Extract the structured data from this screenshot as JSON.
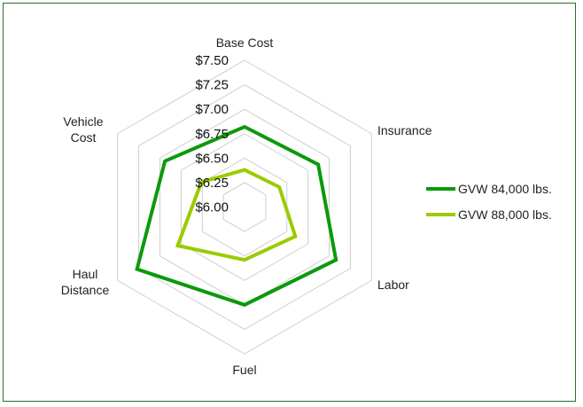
{
  "chart_data": {
    "type": "radar",
    "categories": [
      "Base Cost",
      "Insurance",
      "Labor",
      "Fuel",
      "Haul Distance",
      "Vehicle Cost"
    ],
    "category_lines": [
      [
        "Base Cost"
      ],
      [
        "Insurance"
      ],
      [
        "Labor"
      ],
      [
        "Fuel"
      ],
      [
        "Haul",
        "Distance"
      ],
      [
        "Vehicle",
        "Cost"
      ]
    ],
    "rlim": [
      6.0,
      7.5
    ],
    "ticks": [
      "$6.00",
      "$6.25",
      "$6.50",
      "$6.75",
      "$7.00",
      "$7.25",
      "$7.50"
    ],
    "tick_values": [
      6.0,
      6.25,
      6.5,
      6.75,
      7.0,
      7.25,
      7.5
    ],
    "grid": true,
    "legend_position": "right",
    "series": [
      {
        "name": "GVW 84,000 lbs.",
        "color": "#0a9a0a",
        "values": [
          6.82,
          6.87,
          7.08,
          7.0,
          7.27,
          6.94
        ]
      },
      {
        "name": "GVW 88,000 lbs.",
        "color": "#99cc00",
        "values": [
          6.38,
          6.41,
          6.6,
          6.54,
          6.79,
          6.51
        ]
      }
    ]
  }
}
